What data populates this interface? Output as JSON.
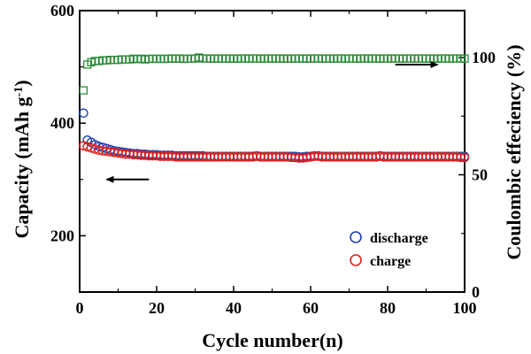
{
  "chart_data": {
    "type": "scatter",
    "xlabel": "Cycle number(n)",
    "ylabel_left_main": "Capacity (mAh g",
    "ylabel_left_sup": "-1",
    "ylabel_left_close": ")",
    "ylabel_right": "Coulombic effeciency (%)",
    "xlim": [
      0,
      100
    ],
    "ylim_left": [
      100,
      600
    ],
    "ylim_right": [
      0,
      120
    ],
    "x_ticks": [
      0,
      20,
      40,
      60,
      80,
      100
    ],
    "x_tick_labels": [
      "0",
      "20",
      "40",
      "60",
      "80",
      "100"
    ],
    "y_left_ticks": [
      200,
      400,
      600
    ],
    "y_left_tick_labels": [
      "200",
      "400",
      "600"
    ],
    "y_right_ticks": [
      0,
      50,
      100
    ],
    "y_right_tick_labels": [
      "0",
      "50",
      "100"
    ],
    "legend_placement": "lower-right",
    "colors": {
      "discharge": "#1f3fb0",
      "charge": "#e0201b",
      "efficiency": "#2e8b3a",
      "axis": "#000000"
    },
    "series": [
      {
        "name": "discharge",
        "axis": "left",
        "marker": "circle",
        "x": [
          1,
          2,
          3,
          4,
          5,
          6,
          7,
          8,
          9,
          10,
          11,
          12,
          13,
          14,
          15,
          16,
          17,
          18,
          19,
          20,
          21,
          22,
          23,
          24,
          25,
          26,
          27,
          28,
          29,
          30,
          31,
          32,
          33,
          34,
          35,
          36,
          37,
          38,
          39,
          40,
          41,
          42,
          43,
          44,
          45,
          46,
          47,
          48,
          49,
          50,
          51,
          52,
          53,
          54,
          55,
          56,
          57,
          58,
          59,
          60,
          61,
          62,
          63,
          64,
          65,
          66,
          67,
          68,
          69,
          70,
          71,
          72,
          73,
          74,
          75,
          76,
          77,
          78,
          79,
          80,
          81,
          82,
          83,
          84,
          85,
          86,
          87,
          88,
          89,
          90,
          91,
          92,
          93,
          94,
          95,
          96,
          97,
          98,
          99,
          100
        ],
        "values": [
          418,
          370,
          366,
          362,
          359,
          357,
          355,
          353,
          351,
          350,
          349,
          348,
          347,
          346,
          346,
          345,
          345,
          344,
          344,
          344,
          343,
          343,
          343,
          343,
          342,
          342,
          342,
          342,
          342,
          342,
          342,
          342,
          341,
          341,
          341,
          341,
          341,
          341,
          341,
          341,
          341,
          341,
          341,
          341,
          341,
          342,
          341,
          341,
          341,
          341,
          341,
          341,
          341,
          341,
          341,
          341,
          340,
          340,
          341,
          341,
          342,
          342,
          341,
          341,
          341,
          341,
          341,
          341,
          341,
          341,
          341,
          341,
          341,
          341,
          341,
          341,
          341,
          342,
          341,
          341,
          341,
          341,
          341,
          341,
          341,
          341,
          341,
          341,
          341,
          341,
          341,
          341,
          341,
          341,
          341,
          341,
          341,
          341,
          341,
          341
        ]
      },
      {
        "name": "charge",
        "axis": "left",
        "marker": "circle",
        "x": [
          1,
          2,
          3,
          4,
          5,
          6,
          7,
          8,
          9,
          10,
          11,
          12,
          13,
          14,
          15,
          16,
          17,
          18,
          19,
          20,
          21,
          22,
          23,
          24,
          25,
          26,
          27,
          28,
          29,
          30,
          31,
          32,
          33,
          34,
          35,
          36,
          37,
          38,
          39,
          40,
          41,
          42,
          43,
          44,
          45,
          46,
          47,
          48,
          49,
          50,
          51,
          52,
          53,
          54,
          55,
          56,
          57,
          58,
          59,
          60,
          61,
          62,
          63,
          64,
          65,
          66,
          67,
          68,
          69,
          70,
          71,
          72,
          73,
          74,
          75,
          76,
          77,
          78,
          79,
          80,
          81,
          82,
          83,
          84,
          85,
          86,
          87,
          88,
          89,
          90,
          91,
          92,
          93,
          94,
          95,
          96,
          97,
          98,
          99,
          100
        ],
        "values": [
          360,
          358,
          356,
          354,
          352,
          351,
          350,
          349,
          348,
          347,
          346,
          345,
          345,
          344,
          344,
          343,
          343,
          342,
          342,
          342,
          341,
          341,
          341,
          341,
          340,
          340,
          340,
          340,
          340,
          340,
          340,
          340,
          340,
          340,
          340,
          340,
          340,
          340,
          340,
          340,
          340,
          340,
          340,
          340,
          340,
          341,
          340,
          340,
          340,
          340,
          340,
          340,
          340,
          340,
          339,
          339,
          338,
          338,
          339,
          340,
          341,
          341,
          340,
          340,
          340,
          340,
          340,
          340,
          340,
          340,
          340,
          340,
          340,
          340,
          340,
          340,
          340,
          341,
          340,
          340,
          340,
          340,
          340,
          340,
          340,
          340,
          340,
          340,
          340,
          340,
          340,
          340,
          340,
          340,
          340,
          340,
          340,
          340,
          339,
          339
        ]
      },
      {
        "name": "Coulombic effeciency",
        "axis": "right",
        "marker": "square",
        "x": [
          1,
          2,
          3,
          4,
          5,
          6,
          7,
          8,
          9,
          10,
          11,
          12,
          13,
          14,
          15,
          16,
          17,
          18,
          19,
          20,
          21,
          22,
          23,
          24,
          25,
          26,
          27,
          28,
          29,
          30,
          31,
          32,
          33,
          34,
          35,
          36,
          37,
          38,
          39,
          40,
          41,
          42,
          43,
          44,
          45,
          46,
          47,
          48,
          49,
          50,
          51,
          52,
          53,
          54,
          55,
          56,
          57,
          58,
          59,
          60,
          61,
          62,
          63,
          64,
          65,
          66,
          67,
          68,
          69,
          70,
          71,
          72,
          73,
          74,
          75,
          76,
          77,
          78,
          79,
          80,
          81,
          82,
          83,
          84,
          85,
          86,
          87,
          88,
          89,
          90,
          91,
          92,
          93,
          94,
          95,
          96,
          97,
          98,
          99,
          100
        ],
        "values": [
          86,
          97,
          98,
          98.5,
          98.5,
          98.8,
          98.8,
          99,
          99,
          99,
          99.2,
          99.2,
          99.2,
          99.5,
          99.3,
          99.5,
          99.2,
          99.4,
          99.5,
          99.4,
          99.5,
          99.4,
          99.5,
          99.6,
          99.5,
          99.6,
          99.4,
          99.5,
          99.5,
          99.6,
          100,
          99.6,
          99.6,
          99.5,
          99.6,
          99.5,
          99.6,
          99.6,
          99.5,
          99.6,
          99.5,
          99.6,
          99.6,
          99.5,
          99.6,
          99.6,
          99.5,
          99.6,
          99.6,
          99.5,
          99.6,
          99.6,
          99.5,
          99.6,
          99.5,
          99.6,
          99.6,
          99.5,
          99.6,
          99.5,
          99.6,
          99.6,
          99.5,
          99.6,
          99.6,
          99.5,
          99.6,
          99.6,
          99.5,
          99.6,
          99.6,
          99.5,
          99.6,
          99.6,
          99.5,
          99.6,
          99.6,
          99.5,
          99.6,
          99.6,
          99.5,
          99.6,
          99.6,
          99.5,
          99.6,
          99.6,
          99.5,
          99.6,
          99.6,
          99.5,
          99.6,
          99.6,
          99.5,
          99.6,
          99.6,
          99.5,
          99.6,
          99.6,
          99.5,
          99.6
        ]
      }
    ],
    "annotations": [
      {
        "type": "arrow",
        "direction": "left",
        "x_from": 18,
        "x_to": 7,
        "y": 300,
        "axis": "left",
        "meaning": "points to capacity axis"
      },
      {
        "type": "arrow",
        "direction": "right",
        "x_from": 82,
        "x_to": 93,
        "y": 97,
        "axis": "right",
        "meaning": "points to efficiency axis"
      }
    ]
  }
}
